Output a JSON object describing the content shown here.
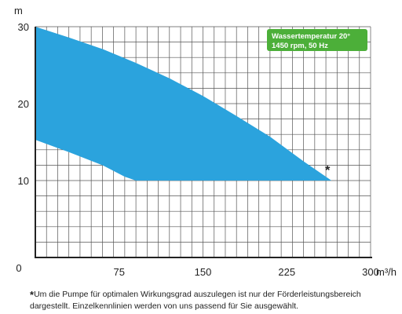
{
  "chart_data": {
    "type": "area",
    "xlabel": "m³/h",
    "ylabel": "m",
    "xlim": [
      0,
      300
    ],
    "ylim": [
      0,
      30
    ],
    "x_ticks": [
      0,
      75,
      150,
      225,
      300
    ],
    "y_ticks": [
      10,
      20,
      30
    ],
    "origin_label": "0",
    "grid": true,
    "legend_position": "top-right",
    "legend_lines": [
      "Wassertemperatur 20°",
      "1450 rpm, 50 Hz"
    ],
    "area_color": "#2ba3dd",
    "legend_color": "#4caf39",
    "series": [
      {
        "upper": [
          [
            0,
            30
          ],
          [
            30,
            28.6
          ],
          [
            60,
            27.1
          ],
          [
            90,
            25.3
          ],
          [
            120,
            23.3
          ],
          [
            150,
            21.0
          ],
          [
            180,
            18.4
          ],
          [
            210,
            15.7
          ],
          [
            240,
            12.5
          ],
          [
            265,
            10
          ]
        ],
        "lower": [
          [
            0,
            15.3
          ],
          [
            30,
            13.7
          ],
          [
            60,
            12.0
          ],
          [
            80,
            10.5
          ],
          [
            90,
            10
          ],
          [
            265,
            10
          ]
        ]
      }
    ],
    "annotation_marker": "*"
  },
  "footnote": {
    "marker": "*",
    "text": "Um die Pumpe für optimalen Wirkungsgrad auszulegen ist nur der Förderleistungsbereich dargestellt. Einzelkennlinien werden von uns passend für Sie ausgewählt."
  }
}
